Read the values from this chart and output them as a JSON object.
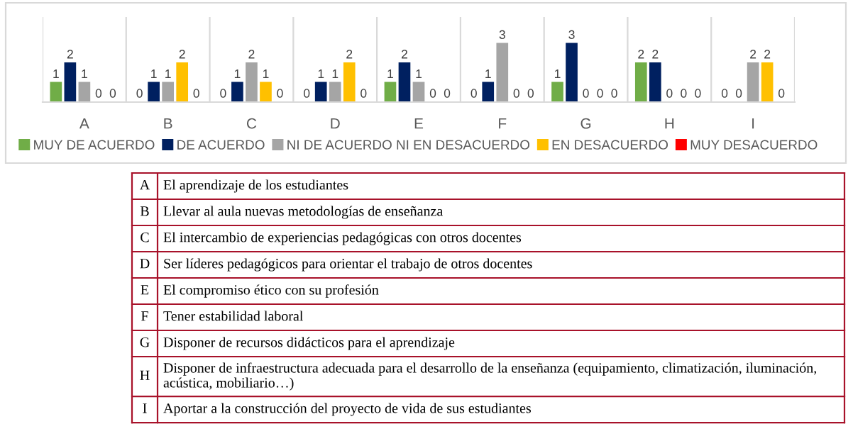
{
  "chart_data": {
    "type": "bar",
    "categories": [
      "A",
      "B",
      "C",
      "D",
      "E",
      "F",
      "G",
      "H",
      "I"
    ],
    "series": [
      {
        "name": "MUY DE ACUERDO",
        "color": "#70ad47",
        "values": [
          1,
          0,
          0,
          0,
          1,
          0,
          1,
          2,
          0
        ]
      },
      {
        "name": "DE ACUERDO",
        "color": "#002060",
        "values": [
          2,
          1,
          1,
          1,
          2,
          1,
          3,
          2,
          0
        ]
      },
      {
        "name": "NI DE ACUERDO NI EN DESACUERDO",
        "color": "#a5a5a5",
        "values": [
          1,
          1,
          2,
          1,
          1,
          3,
          0,
          0,
          2
        ]
      },
      {
        "name": "EN DESACUERDO",
        "color": "#ffc000",
        "values": [
          0,
          2,
          1,
          2,
          0,
          0,
          0,
          0,
          2
        ]
      },
      {
        "name": "MUY DESACUERDO",
        "color": "#ff0000",
        "values": [
          0,
          0,
          0,
          0,
          0,
          0,
          0,
          0,
          0
        ]
      }
    ],
    "data_labels": true,
    "legend": "bottom",
    "grid": "x",
    "tick_labels": "x",
    "annotations": [
      "El aprendizaje de los estudiantes",
      "Llevar al aula nuevas metodologías de enseñanza",
      "El intercambio de experiencias pedagógicas con otros docentes",
      "Ser líderes pedagógicos para orientar el trabajo de otros docentes",
      "El compromiso ético con su profesión",
      "Tener estabilidad laboral",
      "Disponer de recursos didácticos para el aprendizaje",
      "Disponer de infraestructura adecuada para el desarrollo de la enseñanza (equipamiento, climatización, iluminación, acústica, mobiliario…)",
      "Aportar a la construcción del proyecto de vida de sus estudiantes"
    ]
  }
}
